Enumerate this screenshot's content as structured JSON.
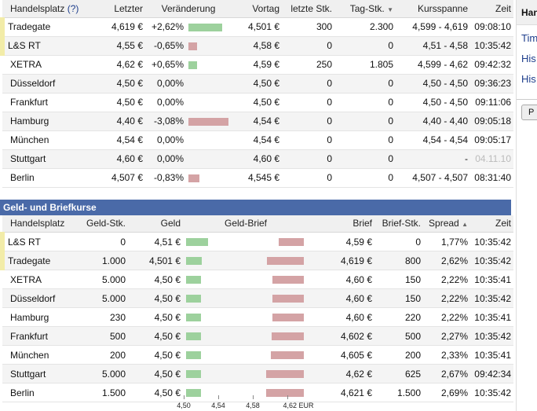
{
  "trades": {
    "headers": {
      "handelsplatz": "Handelsplatz",
      "help": "(?)",
      "letzter": "Letzter",
      "veraenderung": "Veränderung",
      "vortag": "Vortag",
      "letzte_stk": "letzte Stk.",
      "tag_stk": "Tag-Stk.",
      "kursspanne": "Kursspanne",
      "zeit": "Zeit"
    },
    "rows": [
      {
        "name": "Tradegate",
        "link": false,
        "highlight": true,
        "letzter": "4,619 €",
        "change": "+2,62%",
        "change_value": 2.62,
        "vortag": "4,501 €",
        "letzte": "300",
        "tag": "2.300",
        "spanne": "4,599 - 4,619",
        "zeit": "09:08:10",
        "zeit_gray": false
      },
      {
        "name": "L&S RT",
        "link": false,
        "highlight": true,
        "letzter": "4,55 €",
        "change": "-0,65%",
        "change_value": -0.65,
        "vortag": "4,58 €",
        "letzte": "0",
        "tag": "0",
        "spanne": "4,51 - 4,58",
        "zeit": "10:35:42",
        "zeit_gray": false
      },
      {
        "name": "XETRA",
        "link": true,
        "highlight": false,
        "letzter": "4,62 €",
        "change": "+0,65%",
        "change_value": 0.65,
        "vortag": "4,59 €",
        "letzte": "250",
        "tag": "1.805",
        "spanne": "4,599 - 4,62",
        "zeit": "09:42:32",
        "zeit_gray": false
      },
      {
        "name": "Düsseldorf",
        "link": true,
        "highlight": false,
        "letzter": "4,50 €",
        "change": "0,00%",
        "change_value": 0,
        "vortag": "4,50 €",
        "letzte": "0",
        "tag": "0",
        "spanne": "4,50 - 4,50",
        "zeit": "09:36:23",
        "zeit_gray": false
      },
      {
        "name": "Frankfurt",
        "link": true,
        "highlight": false,
        "letzter": "4,50 €",
        "change": "0,00%",
        "change_value": 0,
        "vortag": "4,50 €",
        "letzte": "0",
        "tag": "0",
        "spanne": "4,50 - 4,50",
        "zeit": "09:11:06",
        "zeit_gray": false
      },
      {
        "name": "Hamburg",
        "link": true,
        "highlight": false,
        "letzter": "4,40 €",
        "change": "-3,08%",
        "change_value": -3.08,
        "vortag": "4,54 €",
        "letzte": "0",
        "tag": "0",
        "spanne": "4,40 - 4,40",
        "zeit": "09:05:18",
        "zeit_gray": false
      },
      {
        "name": "München",
        "link": true,
        "highlight": false,
        "letzter": "4,54 €",
        "change": "0,00%",
        "change_value": 0,
        "vortag": "4,54 €",
        "letzte": "0",
        "tag": "0",
        "spanne": "4,54 - 4,54",
        "zeit": "09:05:17",
        "zeit_gray": false
      },
      {
        "name": "Stuttgart",
        "link": true,
        "highlight": false,
        "letzter": "4,60 €",
        "change": "0,00%",
        "change_value": 0,
        "vortag": "4,60 €",
        "letzte": "0",
        "tag": "0",
        "spanne": "-",
        "zeit": "04.11.10",
        "zeit_gray": true
      },
      {
        "name": "Berlin",
        "link": true,
        "highlight": false,
        "letzter": "4,507 €",
        "change": "-0,83%",
        "change_value": -0.83,
        "vortag": "4,545 €",
        "letzte": "0",
        "tag": "0",
        "spanne": "4,507 - 4,507",
        "zeit": "08:31:40",
        "zeit_gray": false
      }
    ]
  },
  "quotes": {
    "title": "Geld- und Briefkurse",
    "headers": {
      "handelsplatz": "Handelsplatz",
      "geld_stk": "Geld-Stk.",
      "geld": "Geld",
      "geld_brief": "Geld-Brief",
      "brief": "Brief",
      "brief_stk": "Brief-Stk.",
      "spread": "Spread",
      "zeit": "Zeit"
    },
    "rows": [
      {
        "name": "L&S RT",
        "link": false,
        "highlight": true,
        "geld_stk": "0",
        "geld": "4,51 €",
        "geld_value": 4.51,
        "brief": "4,59 €",
        "brief_value": 4.59,
        "brief_stk": "0",
        "spread": "1,77%",
        "zeit": "10:35:42"
      },
      {
        "name": "Tradegate",
        "link": false,
        "highlight": true,
        "geld_stk": "1.000",
        "geld": "4,501 €",
        "geld_value": 4.501,
        "brief": "4,619 €",
        "brief_value": 4.619,
        "brief_stk": "800",
        "spread": "2,62%",
        "zeit": "10:35:42"
      },
      {
        "name": "XETRA",
        "link": true,
        "highlight": false,
        "geld_stk": "5.000",
        "geld": "4,50 €",
        "geld_value": 4.5,
        "brief": "4,60 €",
        "brief_value": 4.6,
        "brief_stk": "150",
        "spread": "2,22%",
        "zeit": "10:35:41"
      },
      {
        "name": "Düsseldorf",
        "link": true,
        "highlight": false,
        "geld_stk": "5.000",
        "geld": "4,50 €",
        "geld_value": 4.5,
        "brief": "4,60 €",
        "brief_value": 4.6,
        "brief_stk": "150",
        "spread": "2,22%",
        "zeit": "10:35:42"
      },
      {
        "name": "Hamburg",
        "link": true,
        "highlight": false,
        "geld_stk": "230",
        "geld": "4,50 €",
        "geld_value": 4.5,
        "brief": "4,60 €",
        "brief_value": 4.6,
        "brief_stk": "220",
        "spread": "2,22%",
        "zeit": "10:35:41"
      },
      {
        "name": "Frankfurt",
        "link": true,
        "highlight": false,
        "geld_stk": "500",
        "geld": "4,50 €",
        "geld_value": 4.5,
        "brief": "4,602 €",
        "brief_value": 4.602,
        "brief_stk": "500",
        "spread": "2,27%",
        "zeit": "10:35:42"
      },
      {
        "name": "München",
        "link": true,
        "highlight": false,
        "geld_stk": "200",
        "geld": "4,50 €",
        "geld_value": 4.5,
        "brief": "4,605 €",
        "brief_value": 4.605,
        "brief_stk": "200",
        "spread": "2,33%",
        "zeit": "10:35:41"
      },
      {
        "name": "Stuttgart",
        "link": true,
        "highlight": false,
        "geld_stk": "5.000",
        "geld": "4,50 €",
        "geld_value": 4.5,
        "brief": "4,62 €",
        "brief_value": 4.62,
        "brief_stk": "625",
        "spread": "2,67%",
        "zeit": "09:42:34"
      },
      {
        "name": "Berlin",
        "link": true,
        "highlight": false,
        "geld_stk": "1.500",
        "geld": "4,50 €",
        "geld_value": 4.5,
        "brief": "4,621 €",
        "brief_value": 4.621,
        "brief_stk": "1.500",
        "spread": "2,69%",
        "zeit": "10:35:42"
      }
    ],
    "axis": {
      "ticks": [
        "4,50",
        "4,54",
        "4,58",
        "4,62 EUR"
      ],
      "tick_values": [
        4.5,
        4.54,
        4.58,
        4.62
      ],
      "min": 4.48,
      "max": 4.64
    }
  },
  "sidebar": {
    "head": "Han",
    "links": [
      "Tim",
      "His",
      "His"
    ],
    "button": "P"
  },
  "colors": {
    "positive_bar": "#9dd19d",
    "negative_bar": "#d4a3a5",
    "section_header": "#4a6aa8",
    "highlight_marker": "#f2eca8",
    "link": "#1e3e8c"
  }
}
